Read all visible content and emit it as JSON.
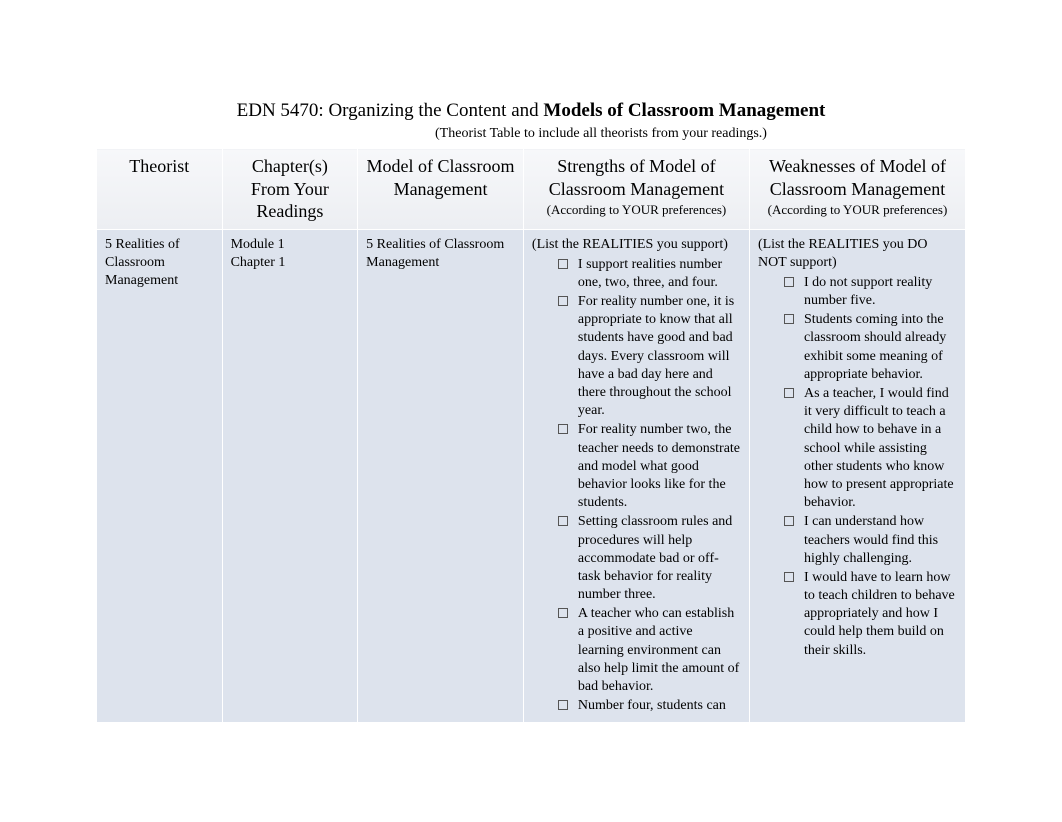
{
  "header": {
    "title_prefix": "EDN 5470: Organizing the Content and  ",
    "title_bold": "Models of Classroom Management",
    "subtitle": "(Theorist Table to include all theorists from your readings.)"
  },
  "columns": {
    "theorist": {
      "title": "Theorist"
    },
    "chapter": {
      "title": "Chapter(s) From Your Readings"
    },
    "model": {
      "title": "Model of Classroom Management"
    },
    "strengths": {
      "title": "Strengths of Model of Classroom Management",
      "sub": "(According to YOUR preferences)"
    },
    "weaknesses": {
      "title": "Weaknesses of Model of Classroom Management",
      "sub": "(According to YOUR preferences)"
    }
  },
  "row": {
    "theorist": "5 Realities of Classroom Management",
    "chapter_line1": "Module 1",
    "chapter_line2": "Chapter 1",
    "model": "5 Realities of Classroom Management",
    "strengths_prompt": "(List the REALITIES you support)",
    "strengths": [
      "I support realities number one, two, three, and four.",
      "For reality number one, it is appropriate to know that all students have good and bad days. Every classroom will have a bad day here and there throughout the school year.",
      "For reality number two, the teacher needs to demonstrate and model what good behavior looks like for the students.",
      "Setting classroom rules and procedures will help accommodate bad or off-task behavior for reality number three.",
      "A teacher who can establish a positive and active learning environment can also help limit the amount of bad behavior.",
      "Number four, students can"
    ],
    "weaknesses_prompt": "(List the REALITIES you DO NOT support)",
    "weaknesses": [
      "I do not support reality number five.",
      "Students coming into the classroom should already exhibit some meaning of appropriate behavior.",
      "As a teacher, I would find it very difficult to teach a child how to behave in a school while assisting other students who know how to present appropriate behavior.",
      "I can understand how teachers would find this highly challenging.",
      "I would have to learn how to teach children to behave appropriately and how I could help them build on their skills."
    ]
  },
  "colors": {
    "page_bg": "#ffffff",
    "cell_bg": "#dde3ed",
    "header_grad_top": "#f7f8fa",
    "header_grad_bottom": "#eceef2",
    "border": "#ffffff",
    "text": "#000000"
  }
}
